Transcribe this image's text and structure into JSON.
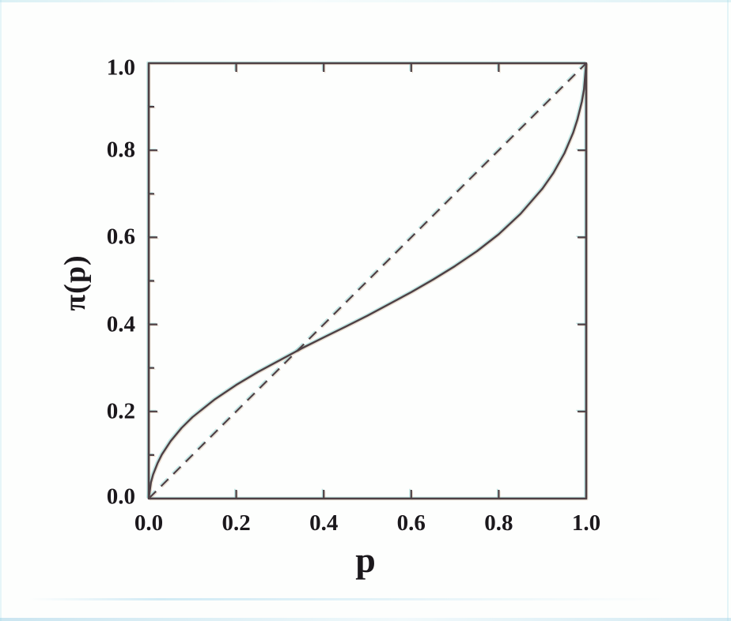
{
  "figure": {
    "background": "#fdfefd",
    "line_ink": "#4e4045",
    "label_ink": "#1b181c",
    "scan_fringe_cyan": "#8fd4d0",
    "scan_fringe_warm": "#c59a74"
  },
  "chart_data": {
    "type": "line",
    "title": "",
    "xlabel": "p",
    "ylabel": "π(p)",
    "xlim": [
      0,
      1
    ],
    "ylim": [
      0,
      1
    ],
    "grid": false,
    "legend": "none",
    "ticks_point": "inward",
    "x_tick_values": [
      0,
      0.2,
      0.4,
      0.6,
      0.8,
      1
    ],
    "x_tick_labels": [
      "0.0",
      "0.2",
      "0.4",
      "0.6",
      "0.8",
      "1.0"
    ],
    "y_tick_values": [
      0,
      0.2,
      0.4,
      0.6,
      0.8,
      1
    ],
    "y_tick_labels": [
      "0.0",
      "0.2",
      "0.4",
      "0.6",
      "0.8",
      "1.0"
    ],
    "minor_tick_values": [
      0.1,
      0.3,
      0.5,
      0.7,
      0.9
    ],
    "series": [
      {
        "name": "probability weighting function pi(p), inverse-S curve",
        "style": "solid",
        "x": [
          0,
          0.005,
          0.01,
          0.02,
          0.03,
          0.05,
          0.075,
          0.1,
          0.15,
          0.2,
          0.25,
          0.3,
          0.35,
          0.4,
          0.45,
          0.5,
          0.55,
          0.6,
          0.65,
          0.7,
          0.75,
          0.8,
          0.85,
          0.9,
          0.925,
          0.95,
          0.97,
          0.98,
          0.99,
          0.995,
          1
        ],
        "y": [
          0,
          0.037,
          0.055,
          0.081,
          0.101,
          0.132,
          0.162,
          0.187,
          0.227,
          0.261,
          0.291,
          0.318,
          0.345,
          0.37,
          0.395,
          0.42,
          0.447,
          0.474,
          0.503,
          0.534,
          0.568,
          0.607,
          0.654,
          0.712,
          0.748,
          0.793,
          0.84,
          0.871,
          0.912,
          0.94,
          1
        ]
      },
      {
        "name": "identity diagonal pi(p) = p",
        "style": "dashed",
        "x": [
          0,
          1
        ],
        "y": [
          0,
          1
        ]
      }
    ],
    "curves_cross_at_p": 0.34
  }
}
